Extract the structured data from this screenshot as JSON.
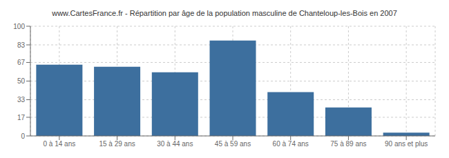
{
  "chart_data": {
    "type": "bar",
    "title": "www.CartesFrance.fr - Répartition par âge de la population masculine de Chanteloup-les-Bois en 2007",
    "categories": [
      "0 à 14 ans",
      "15 à 29 ans",
      "30 à 44 ans",
      "45 à 59 ans",
      "60 à 74 ans",
      "75 à 89 ans",
      "90 ans et plus"
    ],
    "values": [
      65,
      63,
      58,
      87,
      40,
      26,
      3
    ],
    "color": "#3d6f9e",
    "ylim": [
      0,
      100
    ],
    "yticks": [
      0,
      17,
      33,
      50,
      67,
      83,
      100
    ],
    "grid": true
  }
}
